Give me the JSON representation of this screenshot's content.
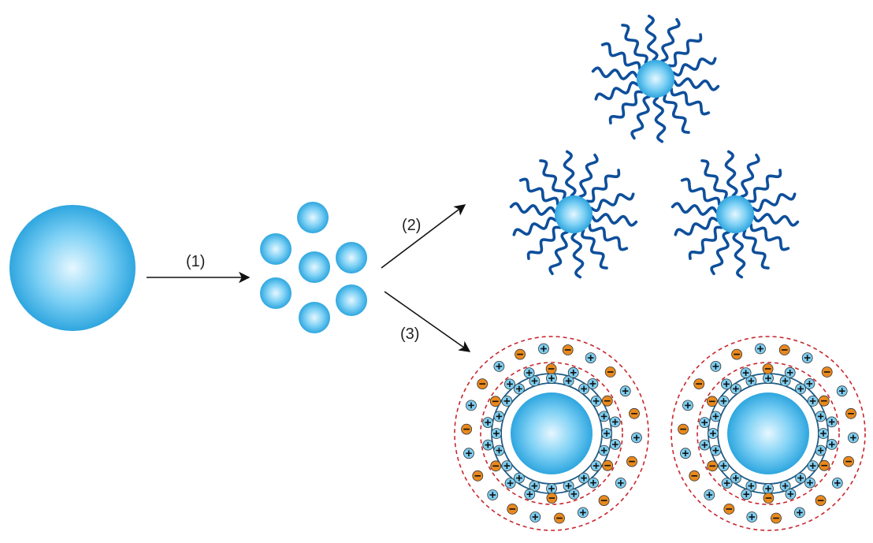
{
  "labels": {
    "step1": "(1)",
    "step2": "(2)",
    "step3": "(3)"
  },
  "colors": {
    "particle_light": "#e6f7ff",
    "particle_mid": "#7fd1f5",
    "particle_dark": "#2ea6df",
    "polymer_chain": "#0e4f9b",
    "layer_ring": "#1b5c8a",
    "diffuse_ring": "#c8262e",
    "positive_ion": "#7ecdf0",
    "negative_ion": "#e8891e",
    "arrow": "#111111"
  },
  "icons": {
    "large_particle": "sphere",
    "small_particle": "sphere",
    "steric_particle": "polymer-coated-sphere",
    "electrostatic_particle": "charged-double-layer-sphere",
    "positive_ion": "plus-circle",
    "negative_ion": "minus-circle"
  }
}
